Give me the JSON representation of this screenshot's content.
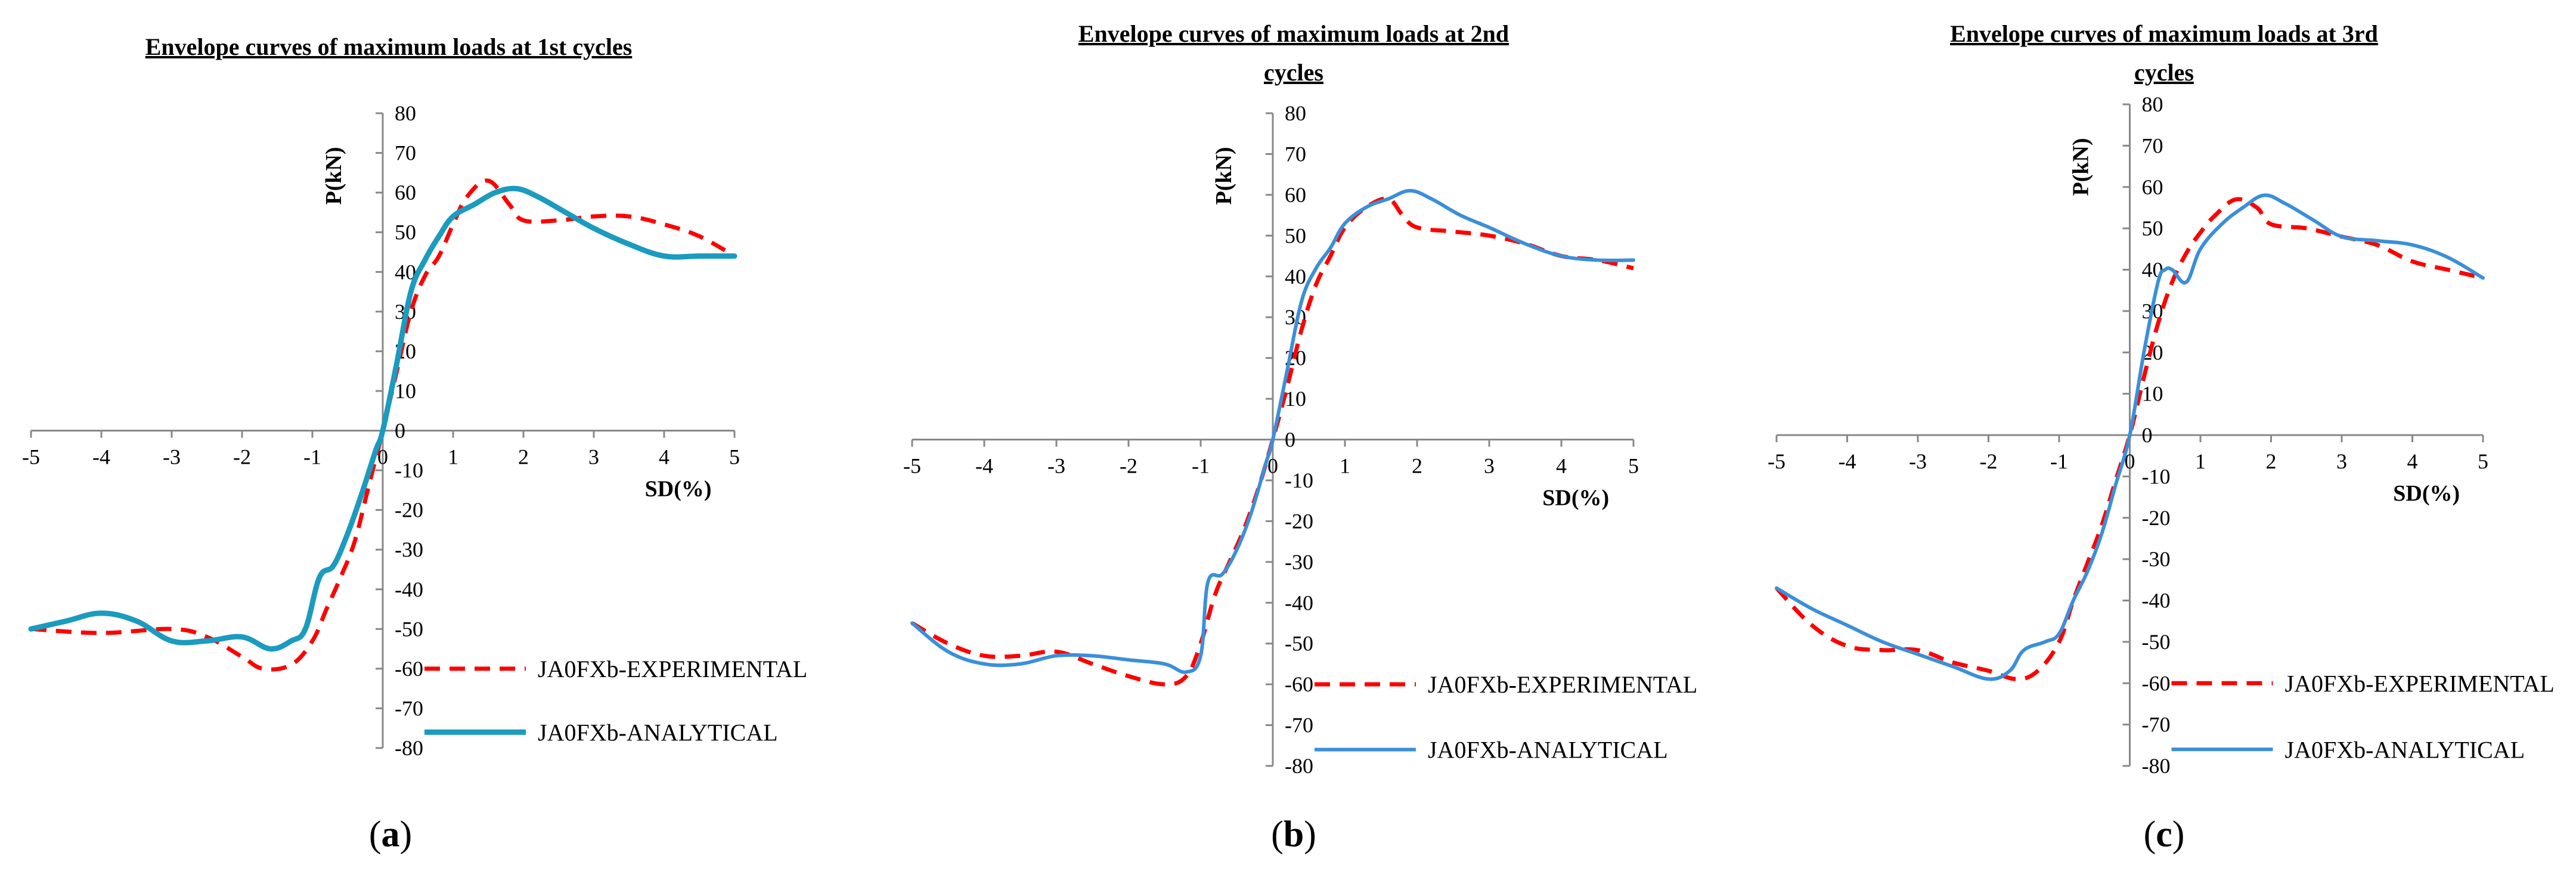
{
  "chart_data": [
    {
      "type": "line",
      "title": "Envelope curves of maximum loads at 1st cycles",
      "title_lines": [
        "Envelope curves of maximum loads at 1st cycles"
      ],
      "xlabel": "SD(%)",
      "ylabel": "P(kN)",
      "xlim": [
        -5,
        5
      ],
      "ylim": [
        -80,
        80
      ],
      "xticks": [
        -5,
        -4,
        -3,
        -2,
        -1,
        0,
        1,
        2,
        3,
        4,
        5
      ],
      "xtick_labels": [
        "-5",
        "-4",
        "-3",
        "-2",
        "-1",
        "0",
        "1",
        "2",
        "3",
        "4",
        "5"
      ],
      "yticks": [
        -80,
        -70,
        -60,
        -50,
        -40,
        -30,
        -20,
        -10,
        0,
        10,
        20,
        30,
        40,
        50,
        60,
        70,
        80
      ],
      "caption_letter": "a",
      "series": [
        {
          "name": "JA0FXb-EXPERIMENTAL",
          "color": "#ff0000",
          "style": "dashed",
          "x": [
            -5,
            -4,
            -3,
            -2.5,
            -2,
            -1.7,
            -1.3,
            -1,
            -0.8,
            -0.6,
            -0.4,
            -0.2,
            0,
            0.2,
            0.4,
            0.6,
            0.8,
            1,
            1.2,
            1.5,
            1.8,
            2,
            2.5,
            3,
            3.5,
            4,
            4.5,
            5
          ],
          "values": [
            -50,
            -51,
            -50,
            -52,
            -57,
            -60,
            -59,
            -53,
            -45,
            -37,
            -28,
            -14,
            0,
            15,
            30,
            39,
            44,
            52,
            59,
            63,
            57,
            53,
            53,
            54,
            54,
            52,
            49,
            44
          ]
        },
        {
          "name": "JA0FXb-ANALYTICAL",
          "color": "#1a9bbf",
          "style": "solid",
          "x": [
            -5,
            -4.5,
            -4,
            -3.5,
            -3,
            -2.5,
            -2,
            -1.6,
            -1.3,
            -1.1,
            -0.9,
            -0.7,
            -0.5,
            -0.3,
            -0.1,
            0,
            0.2,
            0.4,
            0.6,
            0.8,
            1,
            1.3,
            1.6,
            1.9,
            2.2,
            2.6,
            3,
            3.5,
            4,
            4.5,
            5
          ],
          "values": [
            -50,
            -48,
            -46,
            -48,
            -53,
            -53,
            -52,
            -55,
            -53,
            -50,
            -37,
            -34,
            -26,
            -16,
            -5,
            0,
            17,
            35,
            43,
            49,
            54,
            57,
            60,
            61,
            59,
            55,
            51,
            47,
            44,
            44,
            44
          ]
        }
      ]
    },
    {
      "type": "line",
      "title": "Envelope curves of maximum loads at 2nd cycles",
      "title_lines": [
        "Envelope curves of maximum loads at 2nd",
        "cycles"
      ],
      "xlabel": "SD(%)",
      "ylabel": "P(kN)",
      "xlim": [
        -5,
        5
      ],
      "ylim": [
        -80,
        80
      ],
      "xticks": [
        -5,
        -4,
        -3,
        -2,
        -1,
        0,
        1,
        2,
        3,
        4,
        5
      ],
      "xtick_labels": [
        "-5",
        "-4",
        "-3",
        "-2",
        "-1",
        "0",
        "1",
        "2",
        "3",
        "4",
        "5"
      ],
      "yticks": [
        -80,
        -70,
        -60,
        -50,
        -40,
        -30,
        -20,
        -10,
        0,
        10,
        20,
        30,
        40,
        50,
        60,
        70,
        80
      ],
      "caption_letter": "b",
      "series": [
        {
          "name": "JA0FXb-EXPERIMENTAL",
          "color": "#ff0000",
          "style": "dashed",
          "x": [
            -5,
            -4.5,
            -4,
            -3.5,
            -3,
            -2.5,
            -2,
            -1.5,
            -1.2,
            -1,
            -0.8,
            -0.6,
            -0.4,
            -0.2,
            0,
            0.2,
            0.4,
            0.6,
            0.8,
            1,
            1.3,
            1.6,
            1.8,
            2,
            2.5,
            3,
            3.5,
            4,
            4.5,
            5
          ],
          "values": [
            -45,
            -50,
            -53,
            -53,
            -52,
            -55,
            -58,
            -60,
            -58,
            -50,
            -38,
            -30,
            -22,
            -12,
            0,
            13,
            27,
            38,
            45,
            52,
            57,
            59,
            55,
            52,
            51,
            50,
            48,
            45,
            44,
            42
          ]
        },
        {
          "name": "JA0FXb-ANALYTICAL",
          "color": "#3b8fd9",
          "style": "solid",
          "x": [
            -5,
            -4.5,
            -4,
            -3.5,
            -3,
            -2.5,
            -2,
            -1.5,
            -1.2,
            -1,
            -0.9,
            -0.7,
            -0.5,
            -0.3,
            -0.1,
            0,
            0.2,
            0.4,
            0.6,
            0.8,
            1,
            1.3,
            1.6,
            1.9,
            2.2,
            2.6,
            3,
            3.5,
            4,
            4.5,
            5
          ],
          "values": [
            -45,
            -52,
            -55,
            -55,
            -53,
            -53,
            -54,
            -55,
            -57,
            -53,
            -35,
            -33,
            -27,
            -18,
            -6,
            0,
            17,
            34,
            42,
            47,
            53,
            57,
            59,
            61,
            59,
            55,
            52,
            48,
            45,
            44,
            44
          ]
        }
      ]
    },
    {
      "type": "line",
      "title": "Envelope curves of maximum loads at 3rd cycles",
      "title_lines": [
        "Envelope curves of maximum loads at 3rd",
        "cycles"
      ],
      "xlabel": "SD(%)",
      "ylabel": "P(kN)",
      "xlim": [
        -5,
        5
      ],
      "ylim": [
        -80,
        80
      ],
      "xticks": [
        -5,
        -4,
        -3,
        -2,
        -1,
        0,
        1,
        2,
        3,
        4,
        5
      ],
      "xtick_labels": [
        "-5",
        "-4",
        "-3",
        "-2",
        "-1",
        "0",
        "1",
        "2",
        "3",
        "4",
        "5"
      ],
      "yticks": [
        -80,
        -70,
        -60,
        -50,
        -40,
        -30,
        -20,
        -10,
        0,
        10,
        20,
        30,
        40,
        50,
        60,
        70,
        80
      ],
      "caption_letter": "c",
      "series": [
        {
          "name": "JA0FXb-EXPERIMENTAL",
          "color": "#ff0000",
          "style": "dashed",
          "x": [
            -5,
            -4.5,
            -4,
            -3.5,
            -3,
            -2.5,
            -2,
            -1.6,
            -1.3,
            -1,
            -0.8,
            -0.6,
            -0.4,
            -0.2,
            0,
            0.2,
            0.4,
            0.6,
            0.8,
            1,
            1.2,
            1.5,
            1.8,
            2,
            2.5,
            3,
            3.5,
            4,
            4.5,
            5
          ],
          "values": [
            -37,
            -46,
            -51,
            -52,
            -52,
            -55,
            -57,
            -59,
            -57,
            -50,
            -40,
            -31,
            -22,
            -11,
            0,
            14,
            27,
            37,
            44,
            49,
            53,
            57,
            55,
            51,
            50,
            48,
            46,
            42,
            40,
            38
          ]
        },
        {
          "name": "JA0FXb-ANALYTICAL",
          "color": "#3b8fd9",
          "style": "solid",
          "x": [
            -5,
            -4.5,
            -4,
            -3.5,
            -3,
            -2.5,
            -2,
            -1.7,
            -1.5,
            -1.2,
            -1,
            -0.8,
            -0.6,
            -0.4,
            -0.2,
            0,
            0.2,
            0.4,
            0.5,
            0.6,
            0.8,
            1,
            1.3,
            1.6,
            1.9,
            2.2,
            2.6,
            3,
            3.5,
            4,
            4.5,
            5
          ],
          "values": [
            -37,
            -42,
            -46,
            -50,
            -53,
            -56,
            -59,
            -57,
            -52,
            -50,
            -48,
            -40,
            -33,
            -24,
            -12,
            0,
            20,
            37,
            40,
            40,
            37,
            45,
            51,
            55,
            58,
            56,
            52,
            48,
            47,
            46,
            43,
            38
          ]
        }
      ]
    }
  ]
}
